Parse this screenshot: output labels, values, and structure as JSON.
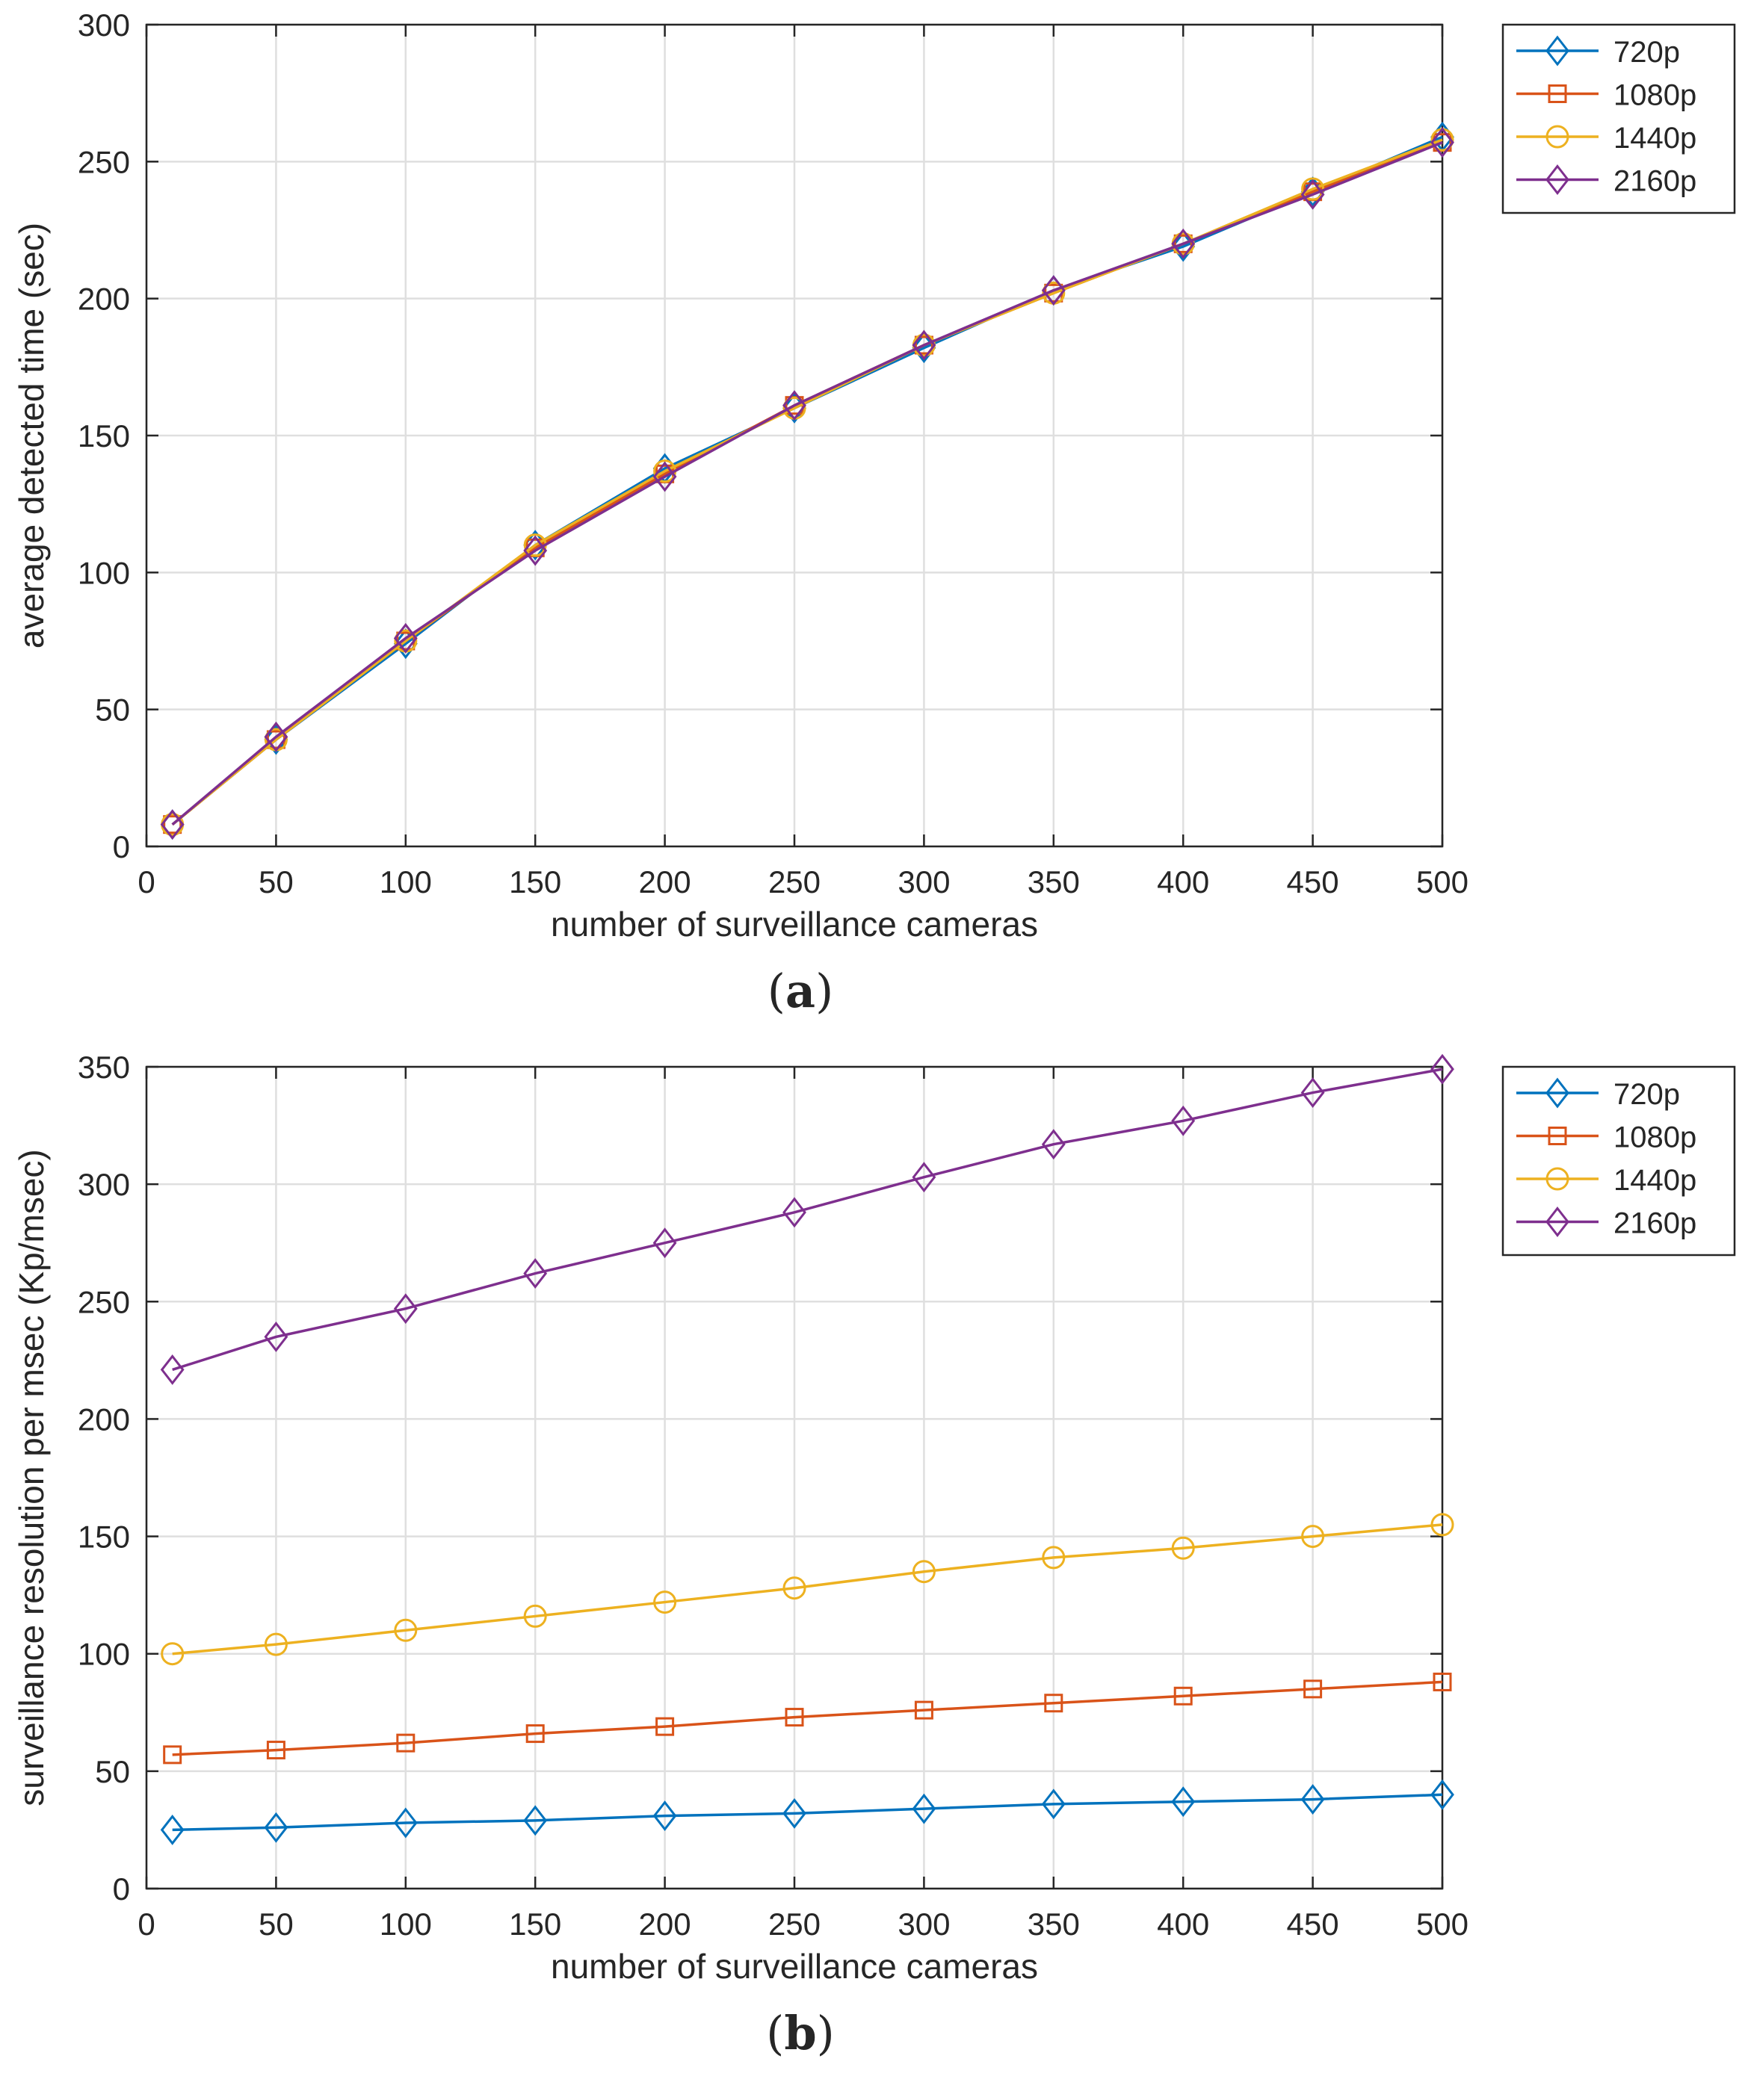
{
  "chart_data": [
    {
      "type": "line",
      "panel_label": "(a)",
      "panel_letter": "a",
      "xlabel": "number of surveillance cameras",
      "ylabel": "average detected time (sec)",
      "xlim": [
        0,
        500
      ],
      "ylim": [
        0,
        300
      ],
      "xticks": [
        0,
        50,
        100,
        150,
        200,
        250,
        300,
        350,
        400,
        450,
        500
      ],
      "yticks": [
        0,
        50,
        100,
        150,
        200,
        250,
        300
      ],
      "grid": true,
      "legend_position": "outside-top-right",
      "x": [
        10,
        50,
        100,
        150,
        200,
        250,
        300,
        350,
        400,
        450,
        500
      ],
      "series": [
        {
          "name": "720p",
          "marker": "diamond",
          "color": "#0072BD",
          "values": [
            8,
            39,
            74,
            110,
            138,
            160,
            182,
            203,
            219,
            239,
            259
          ]
        },
        {
          "name": "1080p",
          "marker": "square",
          "color": "#D95319",
          "values": [
            8,
            39,
            75,
            109,
            136,
            161,
            183,
            202,
            220,
            239,
            257
          ]
        },
        {
          "name": "1440p",
          "marker": "circle",
          "color": "#EDB120",
          "values": [
            8,
            39,
            75,
            110,
            137,
            160,
            183,
            202,
            220,
            240,
            258
          ]
        },
        {
          "name": "2160p",
          "marker": "diamond",
          "color": "#7E2F8E",
          "values": [
            8,
            40,
            76,
            108,
            135,
            161,
            183,
            203,
            220,
            238,
            257
          ]
        }
      ]
    },
    {
      "type": "line",
      "panel_label": "(b)",
      "panel_letter": "b",
      "xlabel": "number of surveillance cameras",
      "ylabel": "surveillance resolution per msec (Kp/msec)",
      "xlim": [
        0,
        500
      ],
      "ylim": [
        0,
        350
      ],
      "xticks": [
        0,
        50,
        100,
        150,
        200,
        250,
        300,
        350,
        400,
        450,
        500
      ],
      "yticks": [
        0,
        50,
        100,
        150,
        200,
        250,
        300,
        350
      ],
      "grid": true,
      "legend_position": "outside-top-right",
      "x": [
        10,
        50,
        100,
        150,
        200,
        250,
        300,
        350,
        400,
        450,
        500
      ],
      "series": [
        {
          "name": "720p",
          "marker": "diamond",
          "color": "#0072BD",
          "values": [
            25,
            26,
            28,
            29,
            31,
            32,
            34,
            36,
            37,
            38,
            40
          ]
        },
        {
          "name": "1080p",
          "marker": "square",
          "color": "#D95319",
          "values": [
            57,
            59,
            62,
            66,
            69,
            73,
            76,
            79,
            82,
            85,
            88
          ]
        },
        {
          "name": "1440p",
          "marker": "circle",
          "color": "#EDB120",
          "values": [
            100,
            104,
            110,
            116,
            122,
            128,
            135,
            141,
            145,
            150,
            155
          ]
        },
        {
          "name": "2160p",
          "marker": "diamond",
          "color": "#7E2F8E",
          "values": [
            221,
            235,
            247,
            262,
            275,
            288,
            303,
            317,
            327,
            339,
            349
          ]
        }
      ]
    }
  ]
}
